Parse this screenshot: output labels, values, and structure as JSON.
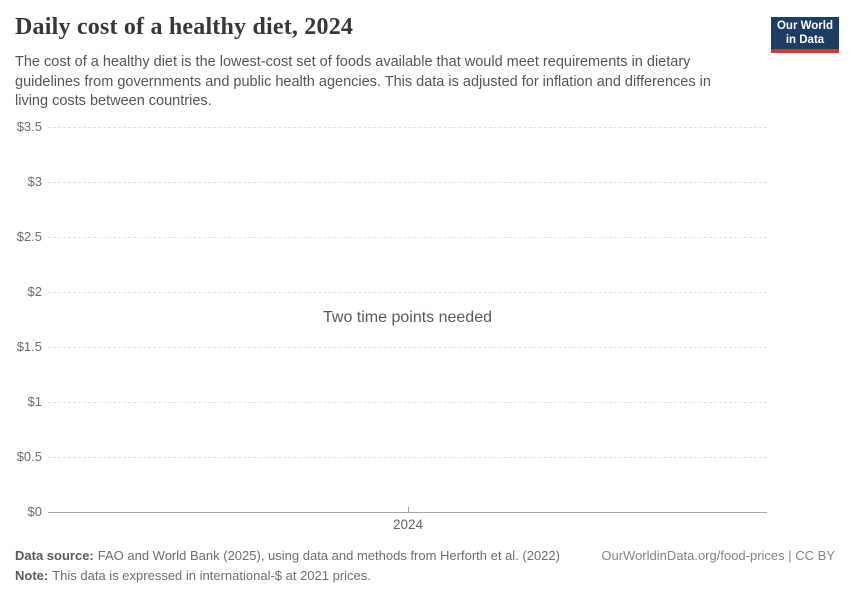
{
  "header": {
    "title": "Daily cost of a healthy diet, 2024",
    "subtitle": "The cost of a healthy diet is the lowest-cost set of foods available that would meet requirements in dietary\nguidelines from governments and public health agencies. This data is adjusted for inflation and differences in\nliving costs between countries.",
    "logo": {
      "line1": "Our World",
      "line2": "in Data",
      "bg_color": "#1d3d63",
      "bar_color": "#cf3b34"
    }
  },
  "chart_data": {
    "type": "line",
    "title": "Daily cost of a healthy diet, 2024",
    "message": "Two time points needed",
    "series": [],
    "x": [
      2024
    ],
    "x_ticks": [
      {
        "value": 2024,
        "label": "2024"
      }
    ],
    "y_ticks": [
      {
        "value": 0,
        "label": "$0"
      },
      {
        "value": 0.5,
        "label": "$0.5"
      },
      {
        "value": 1,
        "label": "$1"
      },
      {
        "value": 1.5,
        "label": "$1.5"
      },
      {
        "value": 2,
        "label": "$2"
      },
      {
        "value": 2.5,
        "label": "$2.5"
      },
      {
        "value": 3,
        "label": "$3"
      },
      {
        "value": 3.5,
        "label": "$3.5"
      }
    ],
    "ylim": [
      0,
      3.5
    ],
    "xlabel": "",
    "ylabel": "",
    "grid": true,
    "gridline_style": "dashed",
    "legend": "none"
  },
  "footer": {
    "source_label": "Data source:",
    "source_text": "FAO and World Bank (2025), using data and methods from Herforth et al. (2022)",
    "note_label": "Note:",
    "note_text": "This data is expressed in international-$ at 2021 prices.",
    "attribution": "OurWorldinData.org/food-prices | CC BY"
  },
  "colors": {
    "title_text": "#383636",
    "subtitle_text": "#555555",
    "axis_text": "#6e6e6e",
    "gridline": "#e2e2e2",
    "axis_line": "#a5a5a5",
    "logo_navy": "#1d3d63",
    "logo_red": "#cf3b34"
  }
}
